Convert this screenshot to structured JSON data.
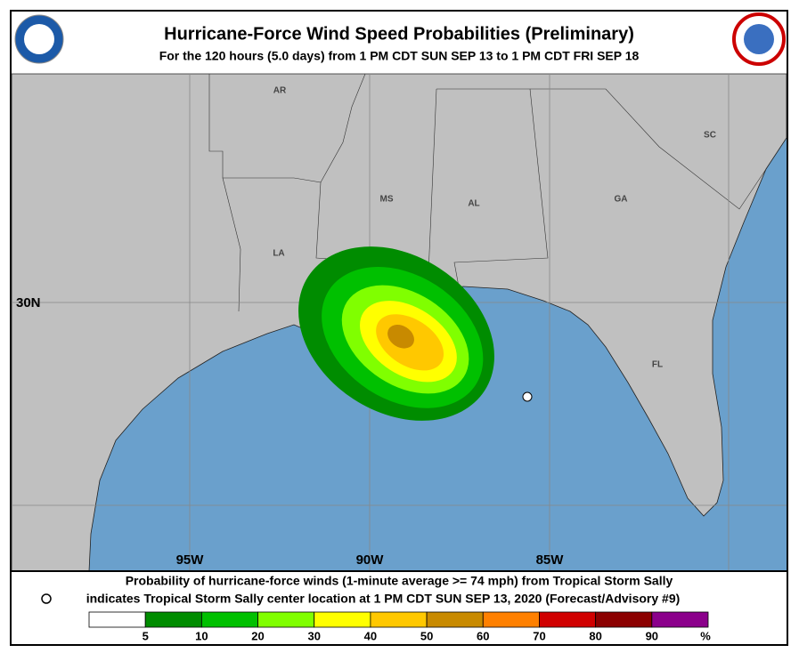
{
  "header": {
    "title": "Hurricane-Force Wind Speed Probabilities (Preliminary)",
    "subtitle": "For the 120 hours (5.0 days) from 1 PM CDT SUN SEP 13 to 1 PM CDT FRI SEP 18"
  },
  "map": {
    "state_labels": [
      "AR",
      "MS",
      "AL",
      "GA",
      "SC",
      "LA",
      "FL"
    ],
    "lat_labels": [
      "30N"
    ],
    "lon_labels": [
      "95W",
      "90W",
      "85W"
    ]
  },
  "footer": {
    "line1": "Probability of hurricane-force winds (1-minute average >= 74 mph) from Tropical Storm Sally",
    "line2": "indicates Tropical Storm Sally center location at 1 PM CDT SUN SEP 13, 2020 (Forecast/Advisory #9)"
  },
  "legend": {
    "labels": [
      "5",
      "10",
      "20",
      "30",
      "40",
      "50",
      "60",
      "70",
      "80",
      "90"
    ],
    "unit": "%",
    "colors": [
      "#ffffff",
      "#008c00",
      "#00c000",
      "#80ff00",
      "#ffff00",
      "#ffc800",
      "#c88a00",
      "#ff8000",
      "#d00000",
      "#8b0000",
      "#8b008b"
    ]
  }
}
